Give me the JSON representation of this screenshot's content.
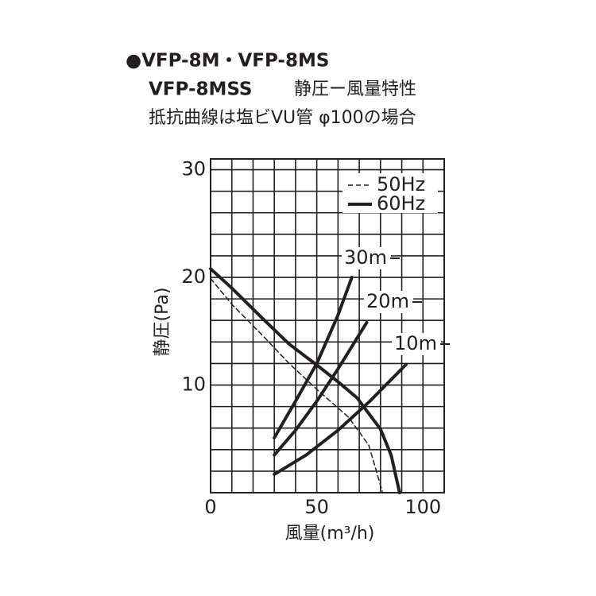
{
  "chart_data": {
    "type": "line",
    "title": "●VFP-8M・VFP-8MS",
    "subtitle_model": "VFP-8MSS",
    "subtitle": "静圧ー風量特性",
    "note": "抵抗曲線は塩ビVU管 φ100の場合",
    "x_label": "風量(m³/h)",
    "y_label": "静圧(Pa)",
    "xlim": [
      0,
      110
    ],
    "ylim": [
      0,
      31
    ],
    "xticks": [
      0,
      50,
      100
    ],
    "yticks": [
      10,
      20,
      30
    ],
    "xgrid": [
      0,
      10,
      20,
      30,
      40,
      50,
      60,
      70,
      80,
      90,
      100,
      110
    ],
    "ygrid": [
      0,
      2,
      4,
      6,
      8,
      10,
      12,
      14,
      16,
      18,
      20,
      22,
      24,
      26,
      28,
      30
    ],
    "grid": true,
    "legend": "upper right",
    "series": [
      {
        "name": "50Hz",
        "style": "dashed",
        "color": "#231f20",
        "x": [
          0,
          10,
          24,
          37,
          50,
          65,
          74.5,
          81
        ],
        "values": [
          19.9,
          17.5,
          14.7,
          12,
          9.6,
          7,
          4.4,
          0
        ]
      },
      {
        "name": "60Hz",
        "style": "solid",
        "color": "#231f20",
        "x": [
          0,
          10,
          24.4,
          37,
          50.4,
          60,
          69,
          80,
          85,
          89
        ],
        "values": [
          20.8,
          19,
          16.2,
          13.8,
          11.8,
          10.3,
          8.8,
          5.9,
          3.5,
          0
        ]
      }
    ],
    "resistance_curves": [
      {
        "name": "30m",
        "color": "#231f20",
        "x": [
          30,
          40,
          50,
          60,
          66.5
        ],
        "values": [
          5.1,
          8.5,
          12,
          16.5,
          20
        ]
      },
      {
        "name": "20m",
        "color": "#231f20",
        "x": [
          30,
          40,
          50,
          60,
          73.5
        ],
        "values": [
          3.5,
          5.8,
          8.5,
          11.5,
          15.8
        ]
      },
      {
        "name": "10m",
        "color": "#231f20",
        "x": [
          30,
          45,
          60,
          75,
          92
        ],
        "values": [
          1.7,
          3.5,
          5.8,
          8.5,
          11.9
        ]
      }
    ]
  }
}
